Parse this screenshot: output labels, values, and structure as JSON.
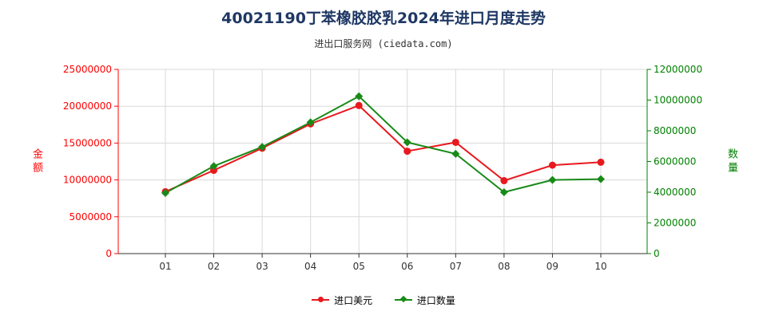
{
  "title": "40021190丁苯橡胶胶乳2024年进口月度走势",
  "subtitle": "进出口服务网 (ciedata.com)",
  "colors": {
    "value": "#e8191e",
    "quantity": "#188a18",
    "left_axis": "#ff0000",
    "right_axis": "#008000"
  },
  "chart_data": {
    "type": "line",
    "categories": [
      "01",
      "02",
      "03",
      "04",
      "05",
      "06",
      "07",
      "08",
      "09",
      "10"
    ],
    "ylabel_left": "金额",
    "ylabel_right": "数量",
    "ylim_left": [
      0,
      25000000
    ],
    "ylim_right": [
      0,
      12000000
    ],
    "yticks_left": [
      "0",
      "5000000",
      "10000000",
      "15000000",
      "20000000",
      "25000000"
    ],
    "yticks_right": [
      "0",
      "2000000",
      "4000000",
      "6000000",
      "8000000",
      "10000000",
      "12000000"
    ],
    "grid": true,
    "legend_position": "bottom",
    "series": [
      {
        "name": "进口美元",
        "axis": "left",
        "values": [
          8400000,
          11300000,
          14300000,
          17600000,
          20100000,
          13900000,
          15100000,
          9900000,
          12000000,
          12400000
        ]
      },
      {
        "name": "进口数量",
        "axis": "right",
        "values": [
          3950000,
          5700000,
          6950000,
          8550000,
          10250000,
          7250000,
          6500000,
          4000000,
          4800000,
          4850000
        ]
      }
    ]
  }
}
